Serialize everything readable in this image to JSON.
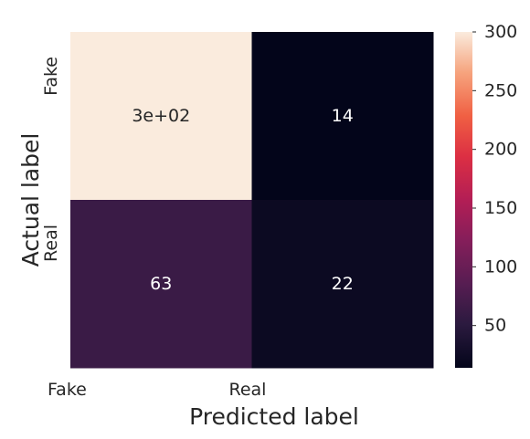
{
  "chart_data": {
    "type": "heatmap",
    "x_categories": [
      "Fake",
      "Real"
    ],
    "y_categories": [
      "Fake",
      "Real"
    ],
    "values": [
      [
        300,
        14
      ],
      [
        63,
        22
      ]
    ],
    "annotations": [
      [
        "3e+02",
        "14"
      ],
      [
        "63",
        "22"
      ]
    ],
    "xlabel": "Predicted label",
    "ylabel": "Actual label",
    "colorbar": {
      "range": [
        14,
        300
      ],
      "ticks": [
        50,
        100,
        150,
        200,
        250,
        300
      ],
      "colormap": "rocket"
    }
  }
}
